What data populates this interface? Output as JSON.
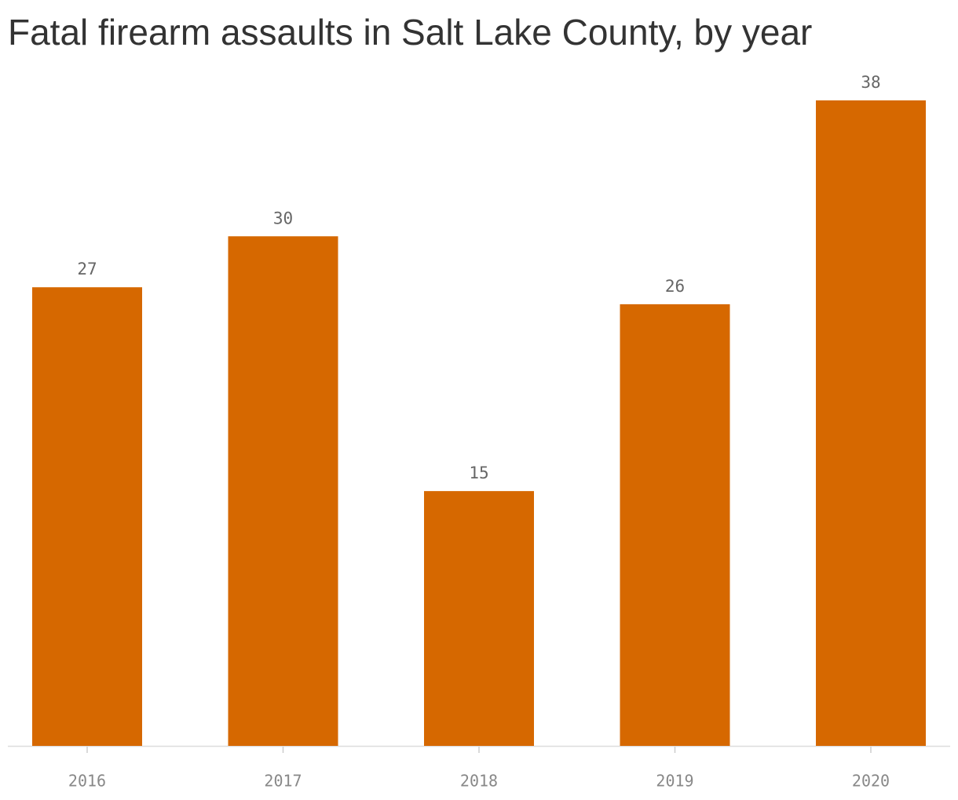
{
  "chart_data": {
    "type": "bar",
    "title": "Fatal firearm assaults in Salt Lake County, by year",
    "categories": [
      "2016",
      "2017",
      "2018",
      "2019",
      "2020"
    ],
    "values": [
      27,
      30,
      15,
      26,
      38
    ],
    "color": "#d66800",
    "ylim": [
      0,
      38
    ]
  }
}
